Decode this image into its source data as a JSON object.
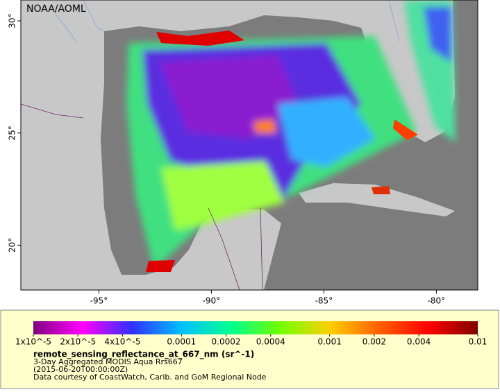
{
  "map": {
    "credit": "NOAA/AOML",
    "xlim": [
      -98.47,
      -78.16
    ],
    "ylim": [
      18.0,
      30.93
    ],
    "xticks": [
      {
        "value": -95,
        "label": "-95°"
      },
      {
        "value": -90,
        "label": "-90°"
      },
      {
        "value": -85,
        "label": "-85°"
      },
      {
        "value": -80,
        "label": "-80°"
      }
    ],
    "yticks": [
      {
        "value": 20,
        "label": "20°"
      },
      {
        "value": 25,
        "label": "25°"
      },
      {
        "value": 30,
        "label": "30°"
      }
    ]
  },
  "legend": {
    "title": "remote_sensing_reflectance_at_667_nm (sr^-1)",
    "subtitle": "3-Day Aggregated MODIS Aqua Rrs667",
    "date": "(2015-06-20T00:00:00Z)",
    "credit": "Data courtesy of CoastWatch, Carib. and GoM Regional Node",
    "colorbar": {
      "log": true,
      "xlim": [
        1e-05,
        0.01
      ],
      "colors": [
        "#7f007f",
        "#ff00ff",
        "#3030ff",
        "#00c0ff",
        "#00ff90",
        "#70ff00",
        "#ffd000",
        "#ff6000",
        "#ff0000",
        "#800000"
      ],
      "ticks": [
        {
          "value": 1e-05,
          "label": "1x10^-5"
        },
        {
          "value": 2e-05,
          "label": "2x10^-5"
        },
        {
          "value": 4e-05,
          "label": "4x10^-5"
        },
        0.0001,
        0.0002,
        0.0004,
        0.001,
        0.002,
        0.004,
        0.01
      ]
    }
  }
}
